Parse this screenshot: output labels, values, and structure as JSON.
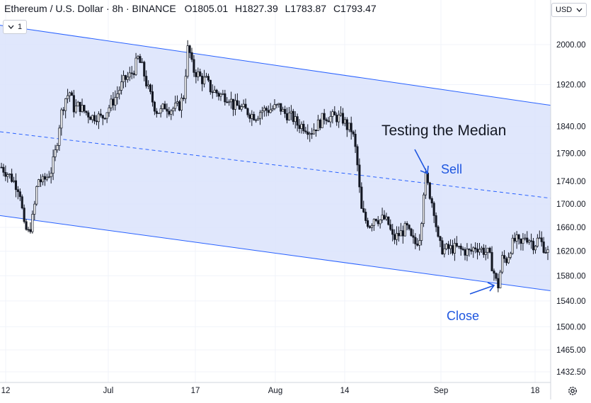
{
  "header": {
    "symbol": "Ethereum / U.S. Dollar · 8h · BINANCE",
    "open": "O1805.01",
    "high": "H1827.39",
    "low": "L1783.87",
    "close": "C1793.47"
  },
  "indicator_badge": "1",
  "currency": "USD",
  "icons": {
    "collapse": "chevron-down-icon",
    "currency_dropdown": "chevron-down-icon",
    "settings": "gear-icon"
  },
  "colors": {
    "channel_fill": "#dbe3fb",
    "channel_line": "#2962ff",
    "annotation": "#1e56e0",
    "candle": "#131722"
  },
  "annotations": {
    "title": "Testing the Median",
    "sell": "Sell",
    "close": "Close"
  },
  "chart_data": {
    "type": "candlestick",
    "title": "",
    "xlabel": "",
    "ylabel": "",
    "y_scale": "log",
    "ylim": [
      1410,
      2070
    ],
    "x_ticks": [
      "12",
      "Jul",
      "17",
      "Aug",
      "14",
      "Sep",
      "18"
    ],
    "y_ticks": [
      "2000.00",
      "1920.00",
      "1840.00",
      "1790.00",
      "1740.00",
      "1700.00",
      "1660.00",
      "1620.00",
      "1580.00",
      "1540.00",
      "1500.00",
      "1465.00",
      "1432.50"
    ],
    "grid": true,
    "price_path": [
      [
        0,
        1765
      ],
      [
        2,
        1748
      ],
      [
        4,
        1725
      ],
      [
        5,
        1660
      ],
      [
        6,
        1650
      ],
      [
        7,
        1680
      ],
      [
        8,
        1745
      ],
      [
        9,
        1738
      ],
      [
        10,
        1748
      ],
      [
        11,
        1760
      ],
      [
        12,
        1798
      ],
      [
        13,
        1860
      ],
      [
        14,
        1893
      ],
      [
        15,
        1905
      ],
      [
        16,
        1872
      ],
      [
        17,
        1880
      ],
      [
        18,
        1870
      ],
      [
        20,
        1858
      ],
      [
        21,
        1860
      ],
      [
        22,
        1855
      ],
      [
        23,
        1868
      ],
      [
        25,
        1895
      ],
      [
        27,
        1930
      ],
      [
        28,
        1935
      ],
      [
        29,
        1948
      ],
      [
        30,
        1972
      ],
      [
        31,
        1952
      ],
      [
        32,
        1917
      ],
      [
        33,
        1892
      ],
      [
        34,
        1870
      ],
      [
        35,
        1868
      ],
      [
        36,
        1880
      ],
      [
        37,
        1872
      ],
      [
        39,
        1878
      ],
      [
        40,
        1898
      ],
      [
        41,
        2000
      ],
      [
        42,
        1950
      ],
      [
        43,
        1942
      ],
      [
        44,
        1930
      ],
      [
        45,
        1928
      ],
      [
        46,
        1910
      ],
      [
        47,
        1906
      ],
      [
        48,
        1900
      ],
      [
        50,
        1896
      ],
      [
        51,
        1878
      ],
      [
        52,
        1878
      ],
      [
        54,
        1868
      ],
      [
        55,
        1862
      ],
      [
        56,
        1860
      ],
      [
        57,
        1870
      ],
      [
        59,
        1872
      ],
      [
        61,
        1878
      ],
      [
        62,
        1865
      ],
      [
        63,
        1862
      ],
      [
        64,
        1856
      ],
      [
        65,
        1844
      ],
      [
        66,
        1842
      ],
      [
        67,
        1838
      ],
      [
        68,
        1830
      ],
      [
        70,
        1848
      ],
      [
        71,
        1860
      ],
      [
        72,
        1857
      ],
      [
        73,
        1858
      ],
      [
        74,
        1856
      ],
      [
        75,
        1853
      ],
      [
        76,
        1838
      ],
      [
        77,
        1833
      ],
      [
        78,
        1785
      ],
      [
        79,
        1690
      ],
      [
        80,
        1672
      ],
      [
        81,
        1664
      ],
      [
        82,
        1680
      ],
      [
        83,
        1672
      ],
      [
        84,
        1675
      ],
      [
        85,
        1665
      ],
      [
        86,
        1640
      ],
      [
        88,
        1652
      ],
      [
        89,
        1660
      ],
      [
        90,
        1640
      ],
      [
        91,
        1632
      ],
      [
        92,
        1648
      ],
      [
        93,
        1752
      ],
      [
        94,
        1720
      ],
      [
        95,
        1690
      ],
      [
        96,
        1632
      ],
      [
        97,
        1622
      ],
      [
        98,
        1624
      ],
      [
        100,
        1625
      ],
      [
        101,
        1622
      ],
      [
        102,
        1620
      ],
      [
        103,
        1618
      ],
      [
        104,
        1628
      ],
      [
        105,
        1625
      ],
      [
        107,
        1616
      ],
      [
        108,
        1590
      ],
      [
        109,
        1560
      ],
      [
        110,
        1608
      ],
      [
        111,
        1606
      ],
      [
        112,
        1630
      ],
      [
        113,
        1640
      ],
      [
        114,
        1628
      ],
      [
        115,
        1645
      ],
      [
        116,
        1640
      ],
      [
        117,
        1630
      ],
      [
        118,
        1642
      ],
      [
        119,
        1628
      ],
      [
        120,
        1618
      ]
    ],
    "channel": {
      "upper": [
        [
          0,
          2040
        ],
        [
          120,
          1880
        ]
      ],
      "median": [
        [
          0,
          1830
        ],
        [
          120,
          1710
        ]
      ],
      "lower": [
        [
          0,
          1680
        ],
        [
          120,
          1556
        ]
      ]
    }
  }
}
